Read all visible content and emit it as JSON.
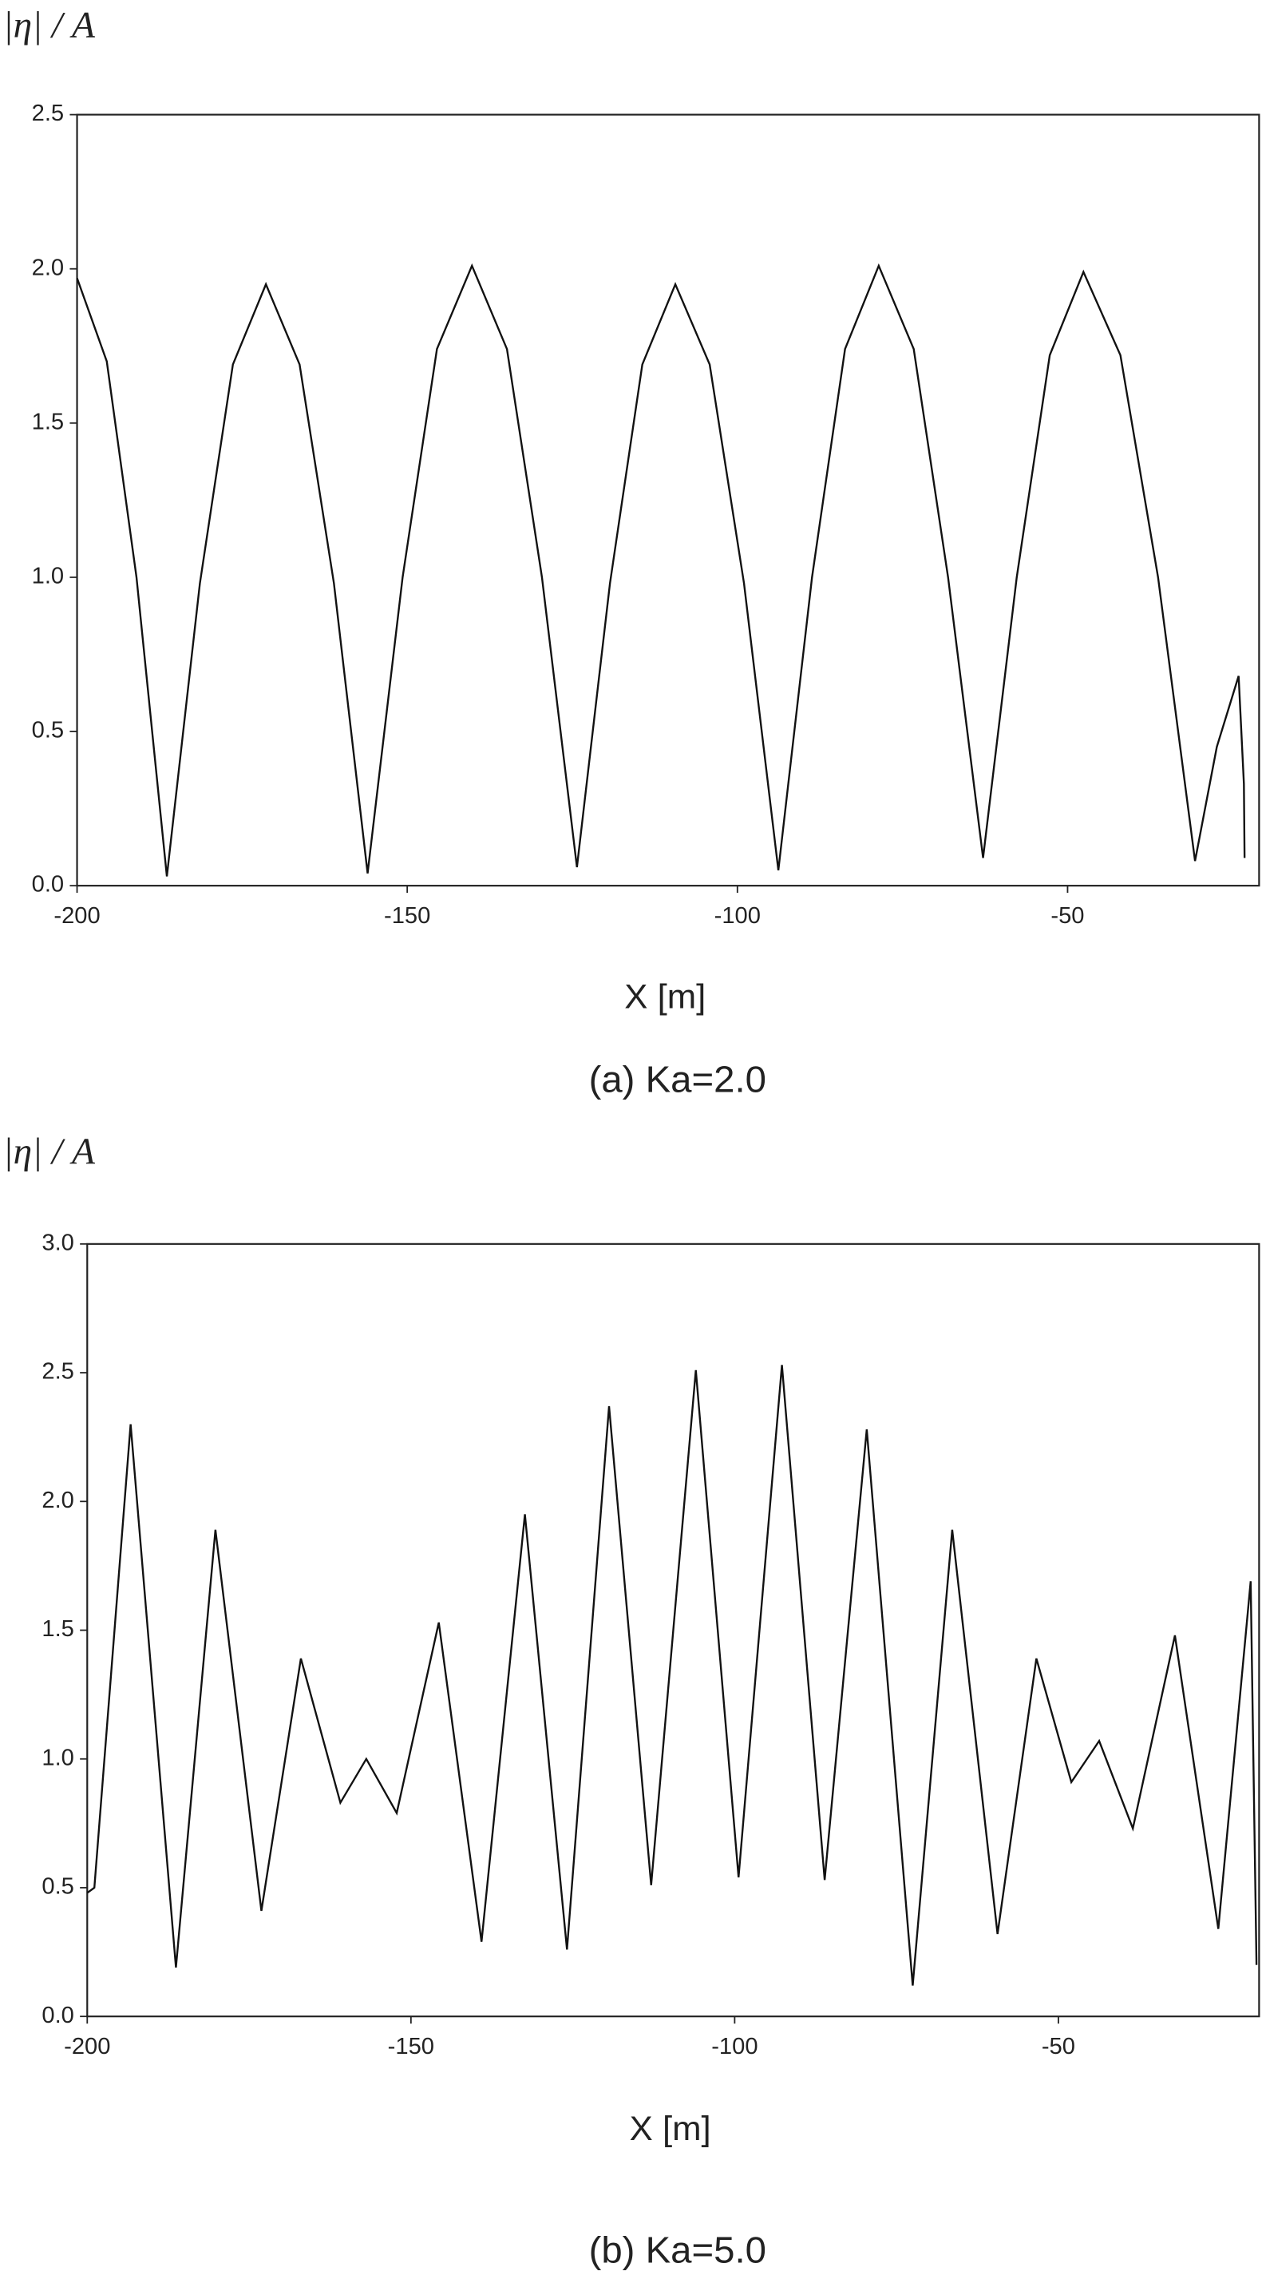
{
  "chart_data": [
    {
      "type": "line",
      "y_label": "|η| / A",
      "x_label": "X [m]",
      "caption": "(a) Ka=2.0",
      "x": [
        -200,
        -195.5,
        -191,
        -186.4,
        -181.4,
        -176.4,
        -171.4,
        -166.3,
        -161.1,
        -156,
        -150.7,
        -145.5,
        -140.2,
        -134.9,
        -129.6,
        -124.3,
        -119.3,
        -114.4,
        -109.4,
        -104.2,
        -99,
        -93.8,
        -88.7,
        -83.7,
        -78.6,
        -73.3,
        -68.1,
        -62.8,
        -57.7,
        -52.7,
        -47.6,
        -42,
        -36.3,
        -30.7,
        -27.4,
        -24.1,
        -23.3,
        -23.2
      ],
      "series": [
        {
          "color": "#111111",
          "values": [
            1.97,
            1.7,
            1.0,
            0.03,
            0.98,
            1.69,
            1.95,
            1.69,
            0.98,
            0.04,
            1.0,
            1.74,
            2.01,
            1.74,
            1.0,
            0.06,
            0.98,
            1.69,
            1.95,
            1.69,
            0.98,
            0.05,
            1.0,
            1.74,
            2.01,
            1.74,
            1.0,
            0.09,
            1.0,
            1.72,
            1.99,
            1.72,
            1.0,
            0.08,
            0.45,
            0.68,
            0.33,
            0.09
          ]
        }
      ],
      "xlim": [
        -200,
        -21
      ],
      "xticks": [
        -200,
        -150,
        -100,
        -50
      ],
      "ylim": [
        0,
        2.5
      ],
      "yticks": [
        {
          "value": 0,
          "label": "0.0"
        },
        0.5,
        {
          "value": 1,
          "label": "1.0"
        },
        1.5,
        {
          "value": 2,
          "label": "2.0"
        },
        2.5
      ]
    },
    {
      "type": "line",
      "y_label": "|η| / A",
      "x_label": "X [m]",
      "caption": "(b) Ka=5.0",
      "x": [
        -200,
        -198.9,
        -193.3,
        -186.3,
        -180.2,
        -173.1,
        -167,
        -160.9,
        -156.9,
        -152.2,
        -145.7,
        -139.1,
        -132.4,
        -125.9,
        -119.4,
        -112.9,
        -106,
        -99.4,
        -92.7,
        -86.1,
        -79.6,
        -72.5,
        -66.4,
        -59.4,
        -53.4,
        -48,
        -43.7,
        -38.5,
        -32,
        -25.3,
        -20.3,
        -19.4
      ],
      "series": [
        {
          "color": "#111111",
          "values": [
            0.48,
            0.5,
            2.3,
            0.19,
            1.89,
            0.41,
            1.39,
            0.83,
            1.0,
            0.79,
            1.53,
            0.29,
            1.95,
            0.26,
            2.37,
            0.51,
            2.51,
            0.54,
            2.53,
            0.53,
            2.28,
            0.12,
            1.89,
            0.32,
            1.39,
            0.91,
            1.07,
            0.73,
            1.48,
            0.34,
            1.69,
            0.2
          ]
        }
      ],
      "xlim": [
        -200,
        -19
      ],
      "xticks": [
        -200,
        -150,
        -100,
        -50
      ],
      "ylim": [
        0,
        3
      ],
      "yticks": [
        {
          "value": 0,
          "label": "0.0"
        },
        0.5,
        {
          "value": 1,
          "label": "1.0"
        },
        1.5,
        {
          "value": 2,
          "label": "2.0"
        },
        2.5,
        {
          "value": 3,
          "label": "3.0"
        }
      ]
    }
  ]
}
